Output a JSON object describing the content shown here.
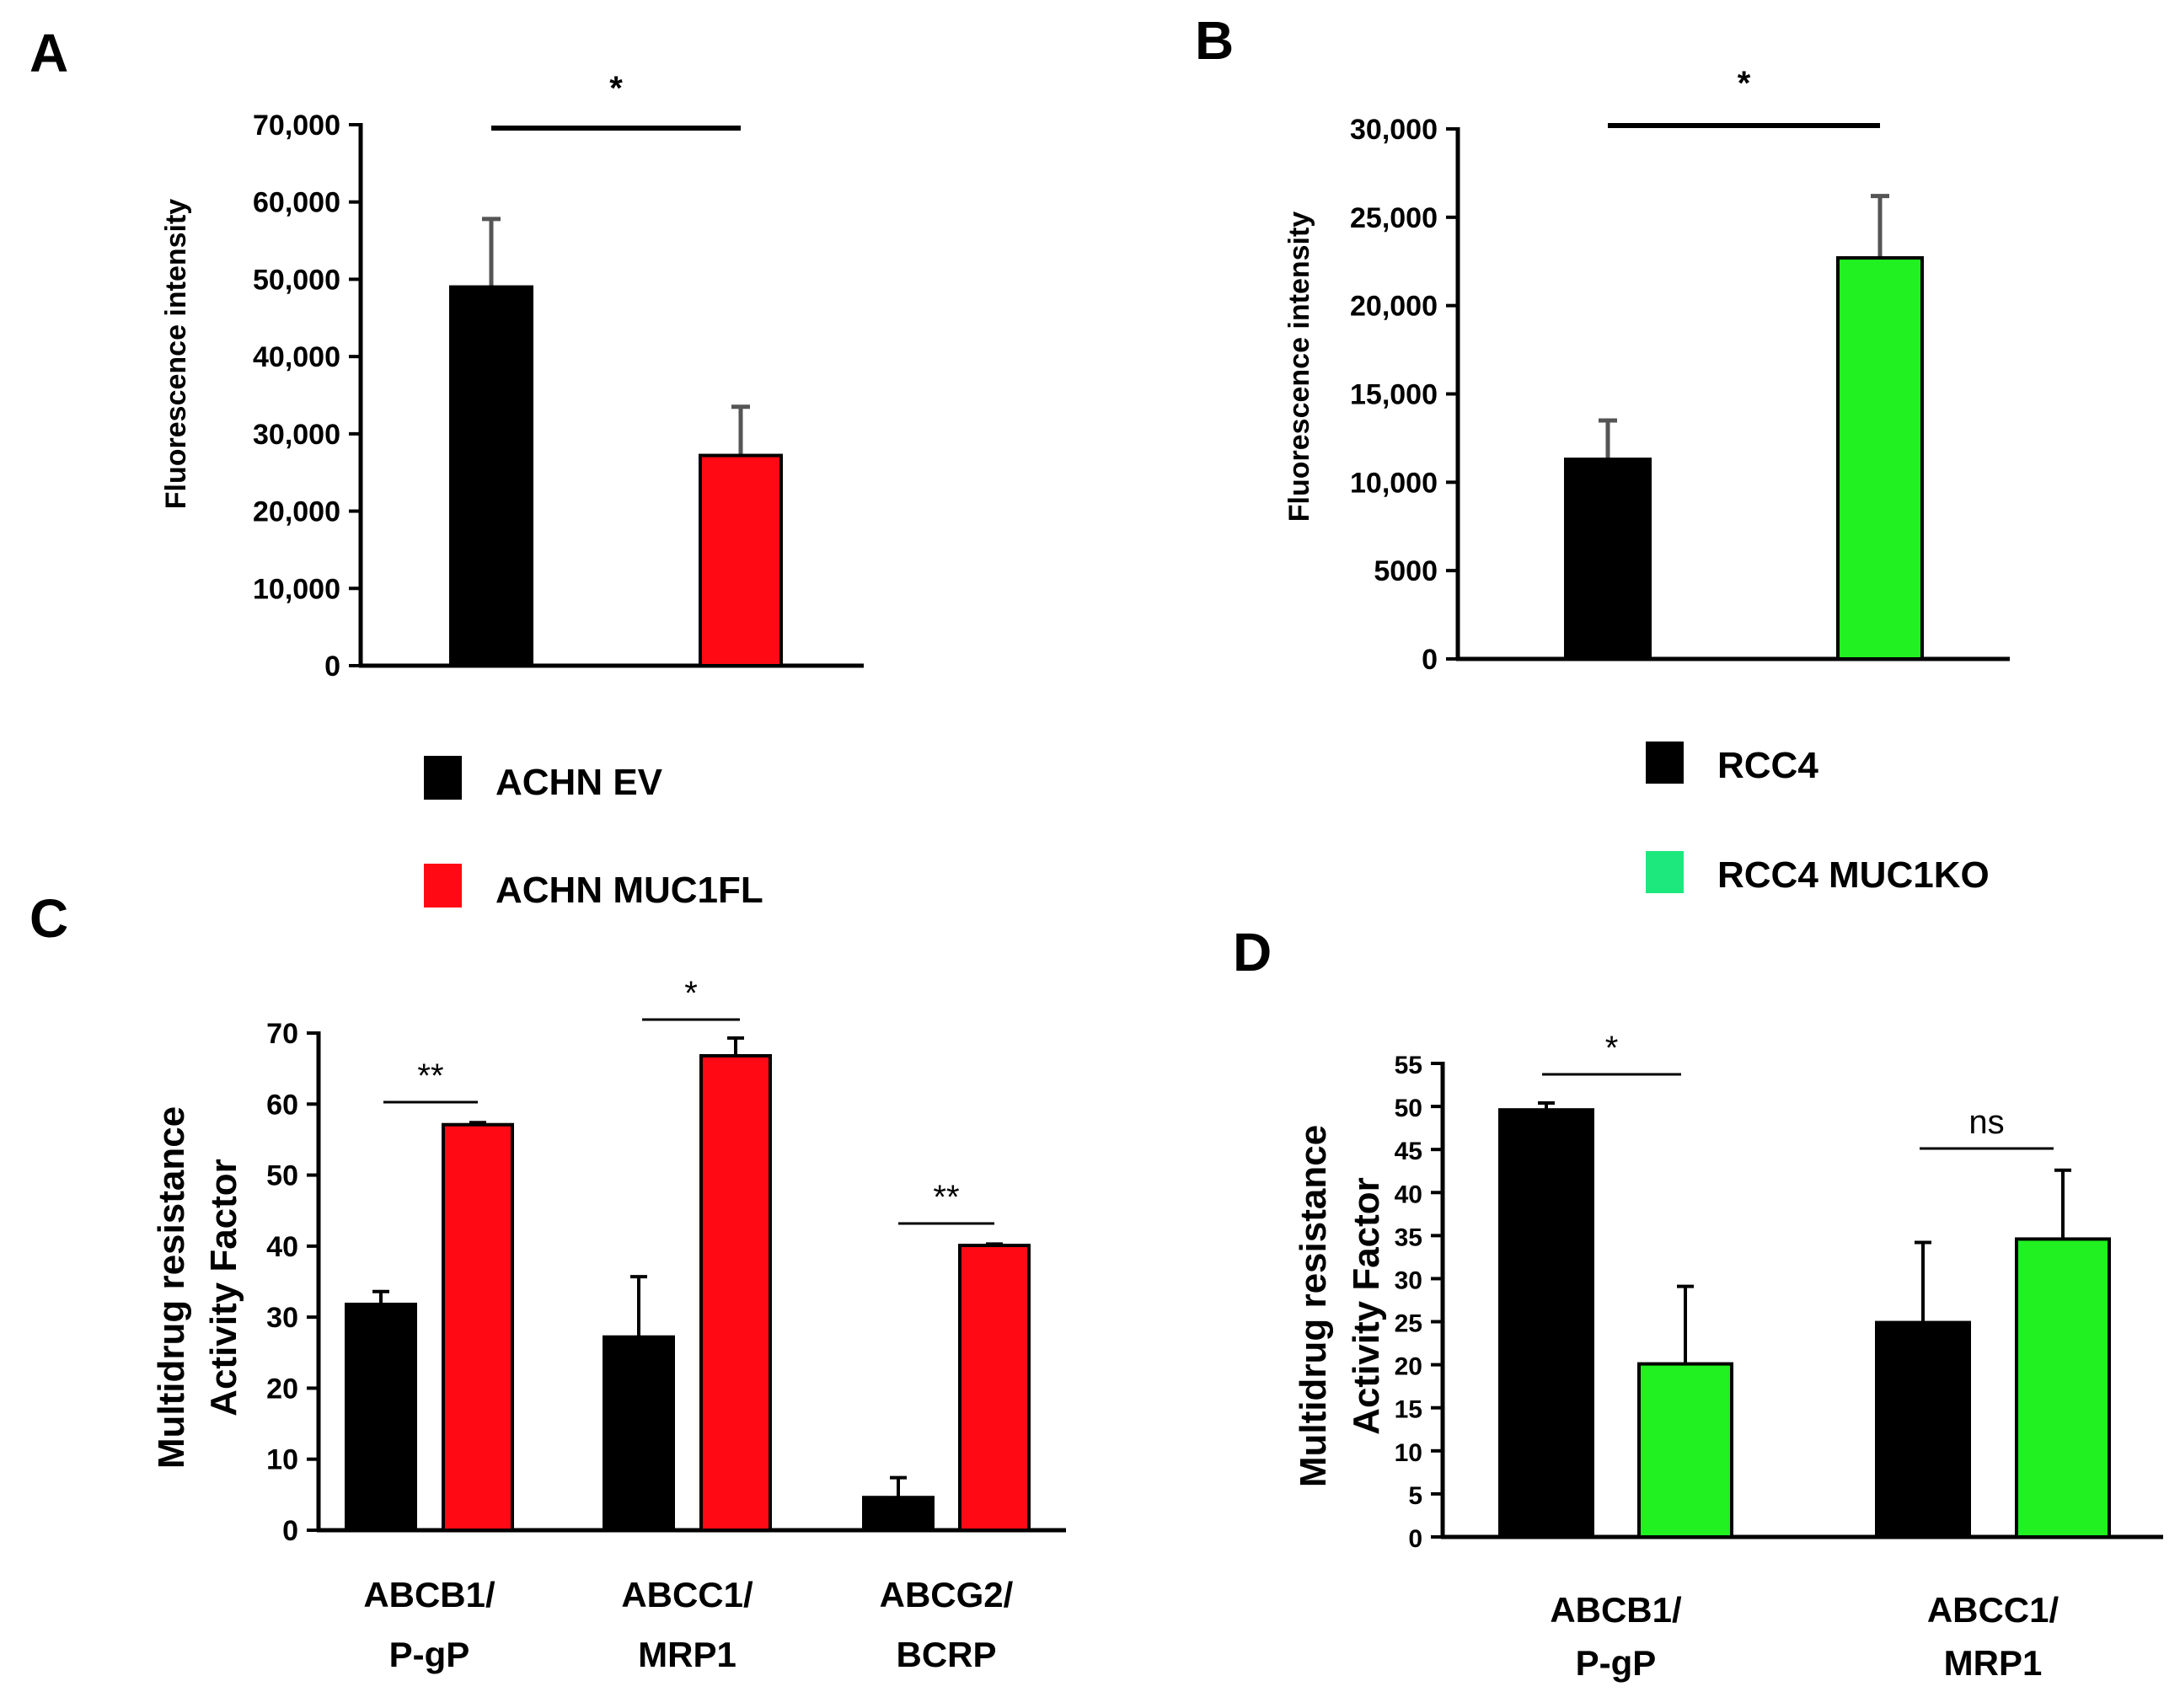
{
  "panels": {
    "A": "A",
    "B": "B",
    "C": "C",
    "D": "D"
  },
  "colors": {
    "black": "#000000",
    "red": "#ff0a14",
    "green": "#21f021",
    "legend_green": "#1de87e",
    "error_ab": "#555555"
  },
  "legends": {
    "A": [
      {
        "label": "ACHN EV",
        "color": "#000000"
      },
      {
        "label": "ACHN MUC1FL",
        "color": "#ff0a14"
      }
    ],
    "B": [
      {
        "label": "RCC4",
        "color": "#000000"
      },
      {
        "label": "RCC4 MUC1KO",
        "color": "#1de87e"
      }
    ]
  },
  "chart_data": [
    {
      "id": "A",
      "type": "bar",
      "ylabel": "Fluorescence intensity",
      "ylim": [
        0,
        70000
      ],
      "yticks": [
        0,
        10000,
        20000,
        30000,
        40000,
        50000,
        60000,
        70000
      ],
      "ytick_labels": [
        "0",
        "10,000",
        "20,000",
        "30,000",
        "40,000",
        "50,000",
        "60,000",
        "70,000"
      ],
      "categories": [
        "ACHN EV",
        "ACHN MUC1FL"
      ],
      "values": [
        49000,
        27200
      ],
      "errors": [
        8800,
        6300
      ],
      "colors": [
        "#000000",
        "#ff0a14"
      ],
      "significance": [
        {
          "from": 0,
          "to": 1,
          "label": "*"
        }
      ]
    },
    {
      "id": "B",
      "type": "bar",
      "ylabel": "Fluorescence intensity",
      "ylim": [
        0,
        30000
      ],
      "yticks": [
        0,
        5000,
        10000,
        15000,
        20000,
        25000,
        30000
      ],
      "ytick_labels": [
        "0",
        "5000",
        "10,000",
        "15,000",
        "20,000",
        "25,000",
        "30,000"
      ],
      "categories": [
        "RCC4",
        "RCC4 MUC1KO"
      ],
      "values": [
        11300,
        22700
      ],
      "errors": [
        2200,
        3500
      ],
      "colors": [
        "#000000",
        "#21f021"
      ],
      "significance": [
        {
          "from": 0,
          "to": 1,
          "label": "*"
        }
      ]
    },
    {
      "id": "C",
      "type": "bar",
      "ylabel": [
        "Multidrug resistance",
        "Activity Factor"
      ],
      "ylim": [
        0,
        70
      ],
      "yticks": [
        0,
        10,
        20,
        30,
        40,
        50,
        60,
        70
      ],
      "ytick_labels": [
        "0",
        "10",
        "20",
        "30",
        "40",
        "50",
        "60",
        "70"
      ],
      "categories": [
        [
          "ABCB1/",
          "P-gP"
        ],
        [
          "ABCC1/",
          "MRP1"
        ],
        [
          "ABCG2/",
          "BCRP"
        ]
      ],
      "series": [
        {
          "name": "ACHN EV",
          "color": "#000000",
          "values": [
            31.8,
            27.2,
            4.6
          ],
          "errors": [
            1.8,
            8.5,
            2.8
          ]
        },
        {
          "name": "ACHN MUC1FL",
          "color": "#ff0a14",
          "values": [
            57.1,
            66.8,
            40.1
          ],
          "errors": [
            0.3,
            2.5,
            0.2
          ]
        }
      ],
      "significance": [
        {
          "group": 0,
          "label": "**"
        },
        {
          "group": 1,
          "label": "*"
        },
        {
          "group": 2,
          "label": "**"
        }
      ]
    },
    {
      "id": "D",
      "type": "bar",
      "ylabel": [
        "Multidrug resistance",
        "Activity Factor"
      ],
      "ylim": [
        0,
        55
      ],
      "yticks": [
        0,
        5,
        10,
        15,
        20,
        25,
        30,
        35,
        40,
        45,
        50,
        55
      ],
      "ytick_labels": [
        "0",
        "5",
        "10",
        "15",
        "20",
        "25",
        "30",
        "35",
        "40",
        "45",
        "50",
        "55"
      ],
      "categories": [
        [
          "ABCB1/",
          "P-gP"
        ],
        [
          "ABCC1/",
          "MRP1"
        ]
      ],
      "series": [
        {
          "name": "RCC4",
          "color": "#000000",
          "values": [
            49.6,
            24.9
          ],
          "errors": [
            0.8,
            9.3
          ]
        },
        {
          "name": "RCC4 MUC1KO",
          "color": "#21f021",
          "values": [
            20.1,
            34.6
          ],
          "errors": [
            9.0,
            8.0
          ]
        }
      ],
      "significance": [
        {
          "group": 0,
          "label": "*"
        },
        {
          "group": 1,
          "label": "ns"
        }
      ]
    }
  ]
}
